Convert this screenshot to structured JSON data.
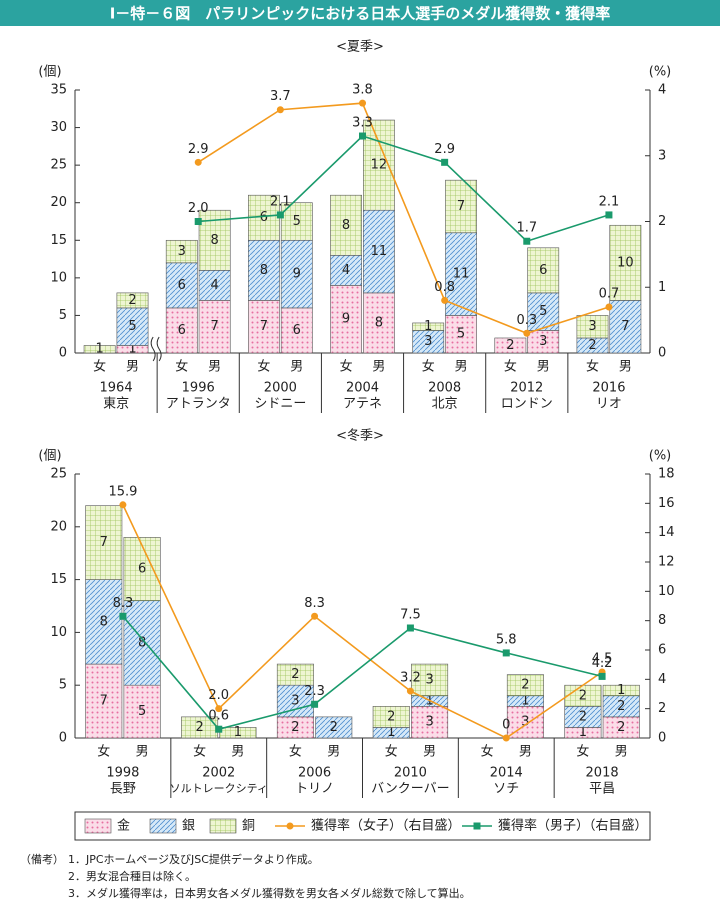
{
  "title": "Ⅰ－特－６図　パラリンピックにおける日本人選手のメダル獲得数・獲得率",
  "chart_data": [
    {
      "type": "bar",
      "subtitle": "<夏季>",
      "y_label": "(個)",
      "y2_label": "(%)",
      "categories": [
        "1964",
        "1996",
        "2000",
        "2004",
        "2008",
        "2012",
        "2016"
      ],
      "category_sublabels": [
        "東京",
        "アトランタ",
        "シドニー",
        "アテネ",
        "北京",
        "ロンドン",
        "リオ"
      ],
      "genders": [
        "女",
        "男"
      ],
      "ylim": [
        0,
        35
      ],
      "yticks": [
        0,
        5,
        10,
        15,
        20,
        25,
        30,
        35
      ],
      "y2lim": [
        0,
        4
      ],
      "y2ticks": [
        0,
        1,
        2,
        3,
        4
      ],
      "series": [
        {
          "name": "金",
          "color": "#f7c6d8",
          "values": [
            [
              0,
              1
            ],
            [
              6,
              7
            ],
            [
              7,
              6
            ],
            [
              9,
              8
            ],
            [
              0,
              5
            ],
            [
              2,
              3
            ],
            [
              0,
              0
            ]
          ]
        },
        {
          "name": "銀",
          "color": "#bcd9f0",
          "values": [
            [
              0,
              5
            ],
            [
              6,
              4
            ],
            [
              8,
              9
            ],
            [
              4,
              11
            ],
            [
              3,
              11
            ],
            [
              0,
              5
            ],
            [
              2,
              7
            ]
          ]
        },
        {
          "name": "銅",
          "color": "#dcebb0",
          "values": [
            [
              1,
              2
            ],
            [
              3,
              8
            ],
            [
              6,
              5
            ],
            [
              8,
              12
            ],
            [
              1,
              7
            ],
            [
              0,
              6
            ],
            [
              3,
              10
            ]
          ]
        },
        {
          "name": "獲得率（女子）（右目盛）",
          "color": "#f39a1e",
          "axis": "y2",
          "values": [
            null,
            2.9,
            3.7,
            3.8,
            0.8,
            0.3,
            0.7
          ],
          "value_labels": [
            null,
            "2.9",
            "3.7",
            "3.8",
            "0.8",
            "0.3",
            "0.7"
          ]
        },
        {
          "name": "獲得率（男子）（右目盛）",
          "color": "#1a9a6c",
          "axis": "y2",
          "values": [
            null,
            2.0,
            2.1,
            3.3,
            2.9,
            1.7,
            2.1
          ],
          "value_labels": [
            null,
            "2.0",
            "2.1",
            "3.3",
            "2.9",
            "1.7",
            "2.1"
          ]
        }
      ]
    },
    {
      "type": "bar",
      "subtitle": "<冬季>",
      "y_label": "(個)",
      "y2_label": "(%)",
      "categories": [
        "1998",
        "2002",
        "2006",
        "2010",
        "2014",
        "2018"
      ],
      "category_sublabels": [
        "長野",
        "ソルトレークシティ",
        "トリノ",
        "バンクーバー",
        "ソチ",
        "平昌"
      ],
      "genders": [
        "女",
        "男"
      ],
      "ylim": [
        0,
        25
      ],
      "yticks": [
        0,
        5,
        10,
        15,
        20,
        25
      ],
      "y2lim": [
        0,
        18
      ],
      "y2ticks": [
        0,
        2,
        4,
        6,
        8,
        10,
        12,
        14,
        16,
        18
      ],
      "series": [
        {
          "name": "金",
          "color": "#f7c6d8",
          "values": [
            [
              7,
              5
            ],
            [
              0,
              0
            ],
            [
              2,
              0
            ],
            [
              0,
              3
            ],
            [
              0,
              3
            ],
            [
              1,
              2
            ]
          ]
        },
        {
          "name": "銀",
          "color": "#bcd9f0",
          "values": [
            [
              8,
              8
            ],
            [
              0,
              0
            ],
            [
              3,
              2
            ],
            [
              1,
              1
            ],
            [
              0,
              1
            ],
            [
              2,
              2
            ]
          ]
        },
        {
          "name": "銅",
          "color": "#dcebb0",
          "values": [
            [
              7,
              6
            ],
            [
              2,
              1
            ],
            [
              2,
              0
            ],
            [
              2,
              3
            ],
            [
              0,
              2
            ],
            [
              2,
              1
            ]
          ]
        },
        {
          "name": "獲得率（女子）（右目盛）",
          "color": "#f39a1e",
          "axis": "y2",
          "values": [
            15.9,
            2.0,
            8.3,
            3.2,
            0,
            4.5
          ],
          "value_labels": [
            "15.9",
            "2.0",
            "8.3",
            "3.2",
            "0",
            "4.5"
          ]
        },
        {
          "name": "獲得率（男子）（右目盛）",
          "color": "#1a9a6c",
          "axis": "y2",
          "values": [
            8.3,
            0.6,
            2.3,
            7.5,
            5.8,
            4.2
          ],
          "value_labels": [
            "8.3",
            "0.6",
            "2.3",
            "7.5",
            "5.8",
            "4.2"
          ]
        }
      ]
    }
  ],
  "notes": {
    "label": "（備考）",
    "items": [
      "1．JPCホームページ及びJSC提供データより作成。",
      "2．男女混合種目は除く。",
      "3．メダル獲得率は，日本男女各メダル獲得数を男女各メダル総数で除して算出。"
    ]
  }
}
